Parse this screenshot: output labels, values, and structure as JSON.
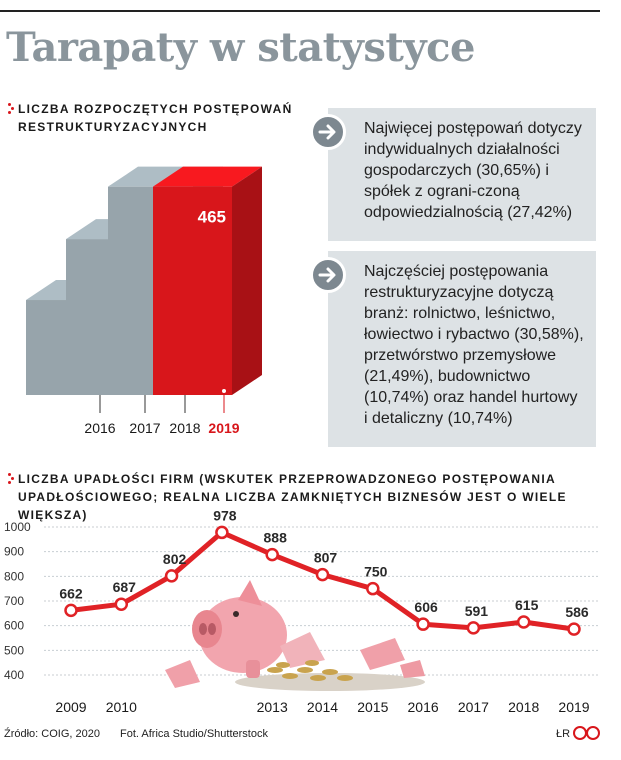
{
  "title": "Tarapaty w statystyce",
  "section1": {
    "heading": "Liczba rozpoczętych postępowań restrukturyzacyjnych"
  },
  "info_box_1": {
    "text": "Najwięcej postępowań dotyczy indywidualnych działalności gospodarczych (30,65%) i spółek z ograni-czoną odpowiedzialnością (27,42%)"
  },
  "info_box_2": {
    "text": "Najczęściej postępowania restrukturyzacyjne dotyczą branż: rolnictwo, leśnictwo, łowiectwo i rybactwo (30,58%), przetwórstwo przemysłowe (21,49%), budownictwo (10,74%) oraz handel hurtowy i detaliczny (10,74%)"
  },
  "section2": {
    "heading": "Liczba upadłości firm (wskutek przeprowadzonego postępowania upadłościowego; realna liczba zamkniętych biznesów jest o wiele większa)"
  },
  "footer": {
    "source": "Źródło: COIG, 2020",
    "photo": "Fot. Africa Studio/Shutterstock",
    "author": "ŁR"
  },
  "colors": {
    "grey_bar": "#97a4ab",
    "red_bar": "#d8161b",
    "line": "#e02226",
    "title": "#8a959c"
  },
  "icons": {
    "arrow": "arrow-right-circle-icon",
    "photo": "piggy-bank-photo",
    "logo": "cp-logo"
  },
  "chart_data": [
    {
      "type": "bar",
      "style": "3d-stepped",
      "title": "Liczba rozpoczętych postępowań restrukturyzacyjnych",
      "categories": [
        "2016",
        "2017",
        "2018",
        "2019"
      ],
      "values": [
        212,
        348,
        465,
        465
      ],
      "highlight": "2019",
      "ylim": [
        0,
        500
      ]
    },
    {
      "type": "line",
      "title": "Liczba upadłości firm (wskutek przeprowadzonego postępowania upadłościowego; realna liczba zamkniętych biznesów jest o wiele większa)",
      "x": [
        "2009",
        "2010",
        "2011",
        "2012",
        "2013",
        "2014",
        "2015",
        "2016",
        "2017",
        "2018",
        "2019"
      ],
      "x_tick_labels": [
        "2009",
        "2010",
        "",
        "",
        "2013",
        "2014",
        "2015",
        "2016",
        "2017",
        "2018",
        "2019"
      ],
      "values": [
        662,
        687,
        802,
        978,
        888,
        807,
        750,
        606,
        591,
        615,
        586
      ],
      "y_ticks": [
        400,
        500,
        600,
        700,
        800,
        900,
        1000
      ],
      "ylim": [
        400,
        1000
      ],
      "grid": true
    }
  ]
}
